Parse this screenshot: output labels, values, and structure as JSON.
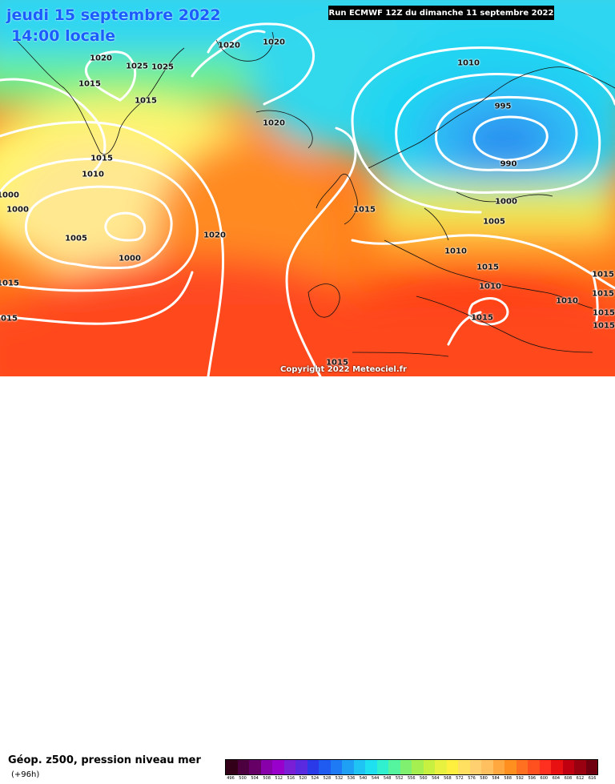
{
  "header": {
    "date": "jeudi 15 septembre 2022",
    "time": "14:00 locale",
    "run": "Run ECMWF 12Z du dimanche 11 septembre 2022",
    "copyright": "Copyright 2022 Meteociel.fr"
  },
  "footer": {
    "title": "Géop. z500, pression niveau mer",
    "subtitle": "(+96h)",
    "scale_colors": [
      "#33001a",
      "#4d0040",
      "#660066",
      "#8800aa",
      "#9900cc",
      "#7a1fd6",
      "#5a2ae0",
      "#2b3ae8",
      "#1f5bf0",
      "#1f7bf5",
      "#1fa0f5",
      "#1fc4f5",
      "#1fe0f0",
      "#30f0d0",
      "#55f5a0",
      "#80f070",
      "#a5f050",
      "#c8f040",
      "#e8f040",
      "#fff040",
      "#ffe060",
      "#ffd070",
      "#ffc060",
      "#ffa840",
      "#ff9020",
      "#ff7020",
      "#ff5020",
      "#ff3020",
      "#e81010",
      "#c00010",
      "#990010",
      "#700010"
    ],
    "scale_labels": [
      "496",
      "500",
      "504",
      "508",
      "512",
      "516",
      "520",
      "524",
      "528",
      "532",
      "536",
      "540",
      "544",
      "548",
      "552",
      "556",
      "560",
      "564",
      "568",
      "572",
      "576",
      "580",
      "584",
      "588",
      "592",
      "596",
      "600",
      "604",
      "608",
      "612",
      "616"
    ]
  },
  "pressure_labels": [
    "1020",
    "1025",
    "1025",
    "1015",
    "1020",
    "1015",
    "1015",
    "1010",
    "1000",
    "1000",
    "1005",
    "1000",
    "1020",
    "1010",
    "1015",
    "1020",
    "995",
    "990",
    "1010",
    "1000",
    "1005",
    "1015",
    "1010",
    "1010",
    "1015",
    "1015",
    "1015",
    "1015",
    "1015",
    "1015",
    "1015",
    "1015",
    "1020"
  ]
}
